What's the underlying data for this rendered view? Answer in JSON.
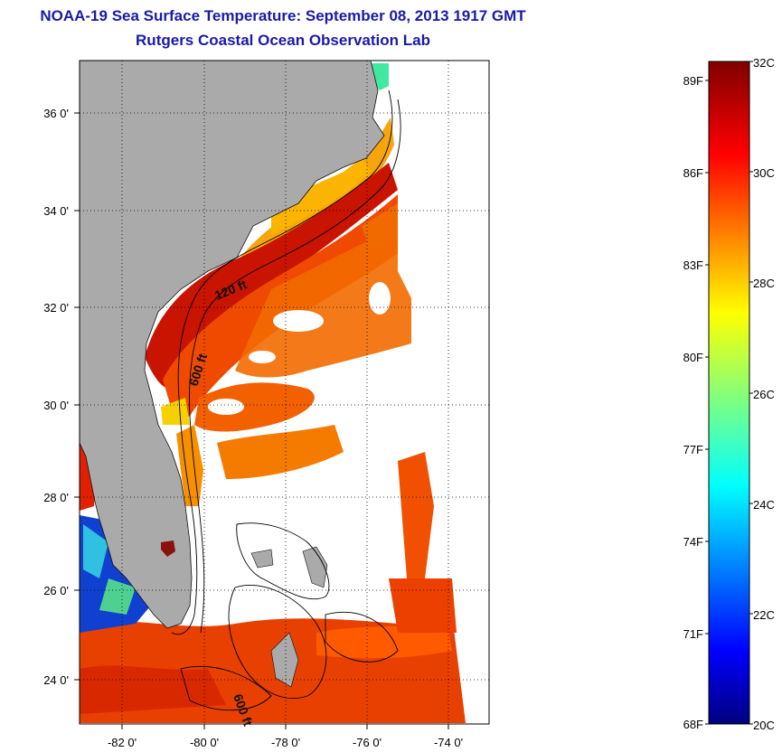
{
  "title": {
    "line1": "NOAA-19 Sea Surface Temperature:  September 08, 2013 1917 GMT",
    "line2": "Rutgers Coastal Ocean Observation Lab"
  },
  "map": {
    "lon_ticks": [
      "-82 0'",
      "-80 0'",
      "-78 0'",
      "-76 0'",
      "-74 0'"
    ],
    "lat_ticks": [
      "36 0'",
      "34 0'",
      "32 0'",
      "30 0'",
      "28 0'",
      "26 0'",
      "24 0'"
    ],
    "lon_range": [
      -83,
      -73
    ],
    "lat_range": [
      23,
      37
    ],
    "contour_labels": [
      "120 ft",
      "600 ft",
      "600 ft"
    ],
    "colors": {
      "land": "#aaaaaa",
      "ocean_no_data": "#ffffff",
      "contour": "#000000"
    }
  },
  "colorbar": {
    "celsius_labels": [
      "32C",
      "30C",
      "28C",
      "26C",
      "24C",
      "22C",
      "20C"
    ],
    "fahrenheit_labels": [
      "89F",
      "86F",
      "83F",
      "80F",
      "77F",
      "74F",
      "71F",
      "68F"
    ],
    "range_c": [
      20,
      32
    ],
    "colormap": "jet"
  }
}
